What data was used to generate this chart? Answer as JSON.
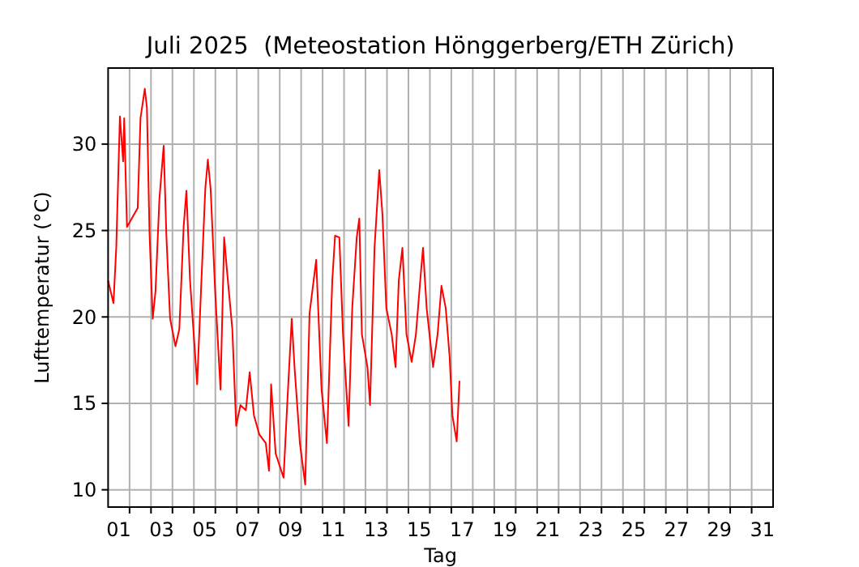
{
  "chart_data": {
    "type": "line",
    "title": "Juli 2025  (Meteostation Hönggerberg/ETH Zürich)",
    "xlabel": "Tag",
    "ylabel": "Lufttemperatur (°C)",
    "color": "#ff0000",
    "grid": true,
    "line_style": "solid",
    "xlim": [
      1,
      32
    ],
    "ylim": [
      9.0,
      34.4
    ],
    "yticks": [
      10,
      15,
      20,
      25,
      30
    ],
    "xticks": [
      {
        "value": 2,
        "label": null
      },
      {
        "value": 3,
        "label": null
      },
      {
        "value": 4,
        "label": null
      },
      {
        "value": 5,
        "label": null
      },
      {
        "value": 6,
        "label": null
      },
      {
        "value": 7,
        "label": null
      },
      {
        "value": 8,
        "label": null
      },
      {
        "value": 9,
        "label": null
      },
      {
        "value": 10,
        "label": null
      },
      {
        "value": 11,
        "label": null
      },
      {
        "value": 12,
        "label": null
      },
      {
        "value": 13,
        "label": null
      },
      {
        "value": 14,
        "label": null
      },
      {
        "value": 15,
        "label": null
      },
      {
        "value": 16,
        "label": null
      },
      {
        "value": 17,
        "label": null
      },
      {
        "value": 18,
        "label": null
      },
      {
        "value": 19,
        "label": null
      },
      {
        "value": 20,
        "label": null
      },
      {
        "value": 21,
        "label": null
      },
      {
        "value": 22,
        "label": null
      },
      {
        "value": 23,
        "label": null
      },
      {
        "value": 24,
        "label": null
      },
      {
        "value": 25,
        "label": null
      },
      {
        "value": 26,
        "label": null
      },
      {
        "value": 27,
        "label": null
      },
      {
        "value": 28,
        "label": null
      },
      {
        "value": 29,
        "label": null
      },
      {
        "value": 30,
        "label": null
      },
      {
        "value": 31,
        "label": null
      },
      {
        "value": 1.5,
        "label": "01"
      },
      {
        "value": 3.5,
        "label": "03"
      },
      {
        "value": 5.5,
        "label": "05"
      },
      {
        "value": 7.5,
        "label": "07"
      },
      {
        "value": 9.5,
        "label": "09"
      },
      {
        "value": 11.5,
        "label": "11"
      },
      {
        "value": 13.5,
        "label": "13"
      },
      {
        "value": 15.5,
        "label": "15"
      },
      {
        "value": 17.5,
        "label": "17"
      },
      {
        "value": 19.5,
        "label": "19"
      },
      {
        "value": 21.5,
        "label": "21"
      },
      {
        "value": 23.5,
        "label": "23"
      },
      {
        "value": 25.5,
        "label": "25"
      },
      {
        "value": 27.5,
        "label": "27"
      },
      {
        "value": 29.5,
        "label": "29"
      },
      {
        "value": 31.5,
        "label": "31"
      }
    ],
    "x": [
      1.0,
      1.25,
      1.38,
      1.55,
      1.7,
      1.75,
      1.88,
      2.38,
      2.51,
      2.71,
      2.81,
      2.93,
      3.08,
      3.21,
      3.39,
      3.59,
      3.72,
      3.89,
      4.14,
      4.32,
      4.52,
      4.65,
      4.82,
      5.15,
      5.33,
      5.53,
      5.65,
      5.78,
      5.99,
      6.24,
      6.41,
      6.54,
      6.79,
      6.97,
      7.17,
      7.42,
      7.6,
      7.8,
      8.05,
      8.35,
      8.5,
      8.6,
      8.81,
      9.18,
      9.36,
      9.56,
      9.69,
      9.94,
      10.19,
      10.39,
      10.7,
      10.95,
      11.2,
      11.45,
      11.58,
      11.78,
      11.95,
      12.21,
      12.38,
      12.59,
      12.71,
      12.83,
      13.09,
      13.21,
      13.42,
      13.64,
      13.79,
      13.97,
      14.22,
      14.4,
      14.55,
      14.72,
      14.91,
      15.15,
      15.35,
      15.55,
      15.68,
      15.85,
      16.15,
      16.36,
      16.54,
      16.74,
      16.92,
      17.05,
      17.25,
      17.38
    ],
    "values": [
      22.1,
      20.8,
      24.0,
      31.6,
      29.0,
      31.5,
      25.2,
      26.3,
      31.5,
      33.2,
      32.1,
      24.9,
      19.9,
      21.5,
      26.8,
      29.9,
      24.6,
      19.9,
      18.3,
      19.3,
      25.2,
      27.3,
      22.1,
      16.1,
      21.5,
      27.4,
      29.1,
      27.4,
      21.5,
      15.8,
      24.6,
      22.7,
      19.3,
      13.7,
      14.9,
      14.6,
      16.8,
      14.3,
      13.2,
      12.7,
      11.1,
      16.1,
      12.1,
      10.7,
      15.2,
      19.9,
      17.1,
      12.7,
      10.3,
      20.2,
      23.3,
      15.8,
      12.7,
      22.1,
      24.7,
      24.6,
      19.0,
      13.7,
      20.5,
      24.6,
      25.7,
      19.0,
      17.1,
      14.9,
      24.0,
      28.5,
      25.9,
      20.5,
      19.0,
      17.1,
      22.1,
      24.0,
      19.0,
      17.4,
      19.0,
      22.1,
      24.0,
      20.5,
      17.1,
      19.0,
      21.8,
      20.5,
      17.7,
      14.3,
      12.8,
      16.3
    ]
  }
}
